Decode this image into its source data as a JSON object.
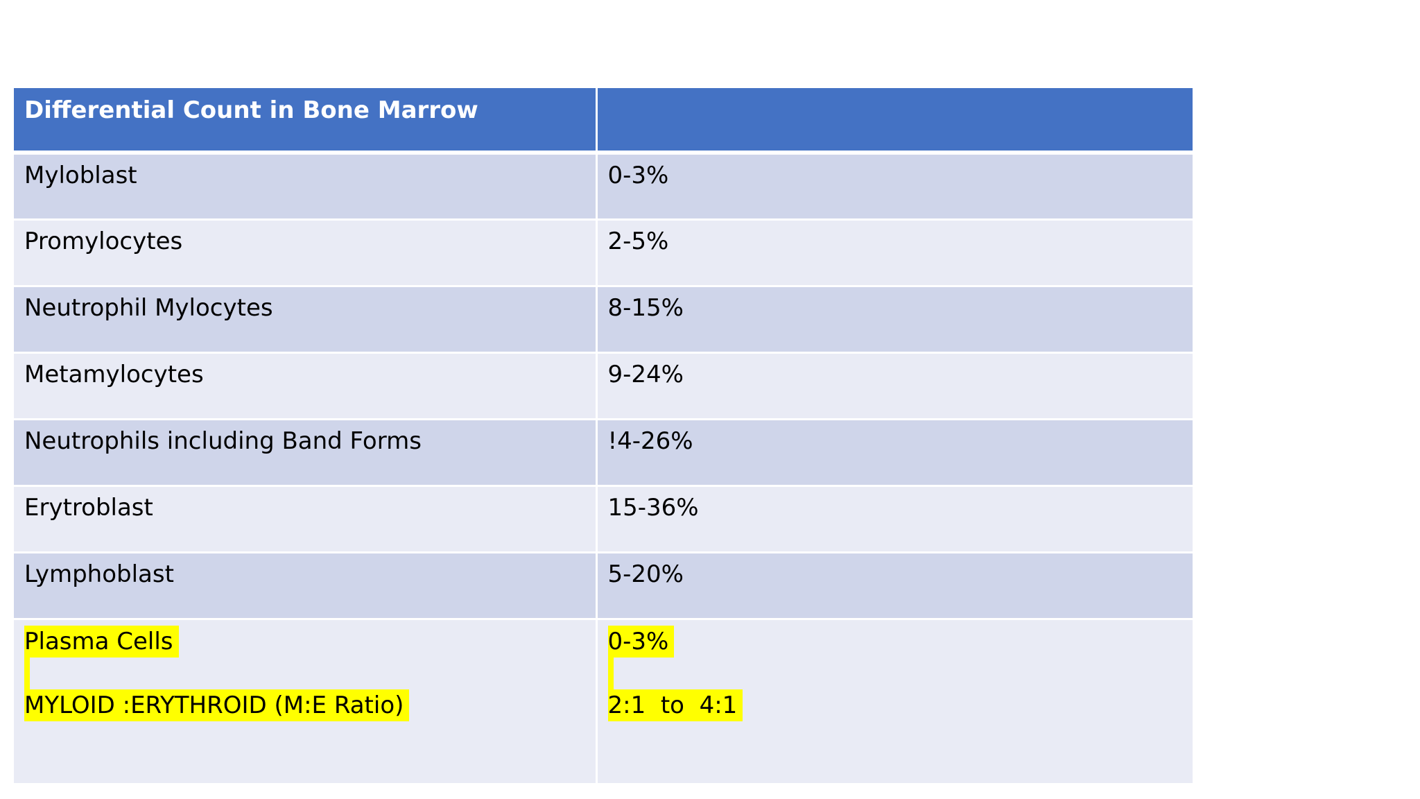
{
  "table": {
    "header": {
      "col1": "Differential Count in Bone Marrow",
      "col2": ""
    },
    "rows": [
      {
        "cell": "Myloblast",
        "value": "0-3%"
      },
      {
        "cell": "Promylocytes",
        "value": "2-5%"
      },
      {
        "cell": "Neutrophil Mylocytes",
        "value": "8-15%"
      },
      {
        "cell": "Metamylocytes",
        "value": "9-24%"
      },
      {
        "cell": "Neutrophils including Band Forms",
        "value": "!4-26%"
      },
      {
        "cell": "Erytroblast",
        "value": "15-36%"
      },
      {
        "cell": "Lymphoblast",
        "value": "5-20%"
      }
    ],
    "last_row": {
      "cell_line1": "Plasma Cells",
      "cell_line2": "MYLOID :ERYTHROID (M:E Ratio)",
      "value_line1": "0-3%",
      "value_line2": "2:1  to  4:1"
    }
  },
  "colors": {
    "header_bg": "#4472c4",
    "row_band_dark": "#cfd5ea",
    "row_band_light": "#e9ebf5",
    "highlight": "#ffff00"
  }
}
